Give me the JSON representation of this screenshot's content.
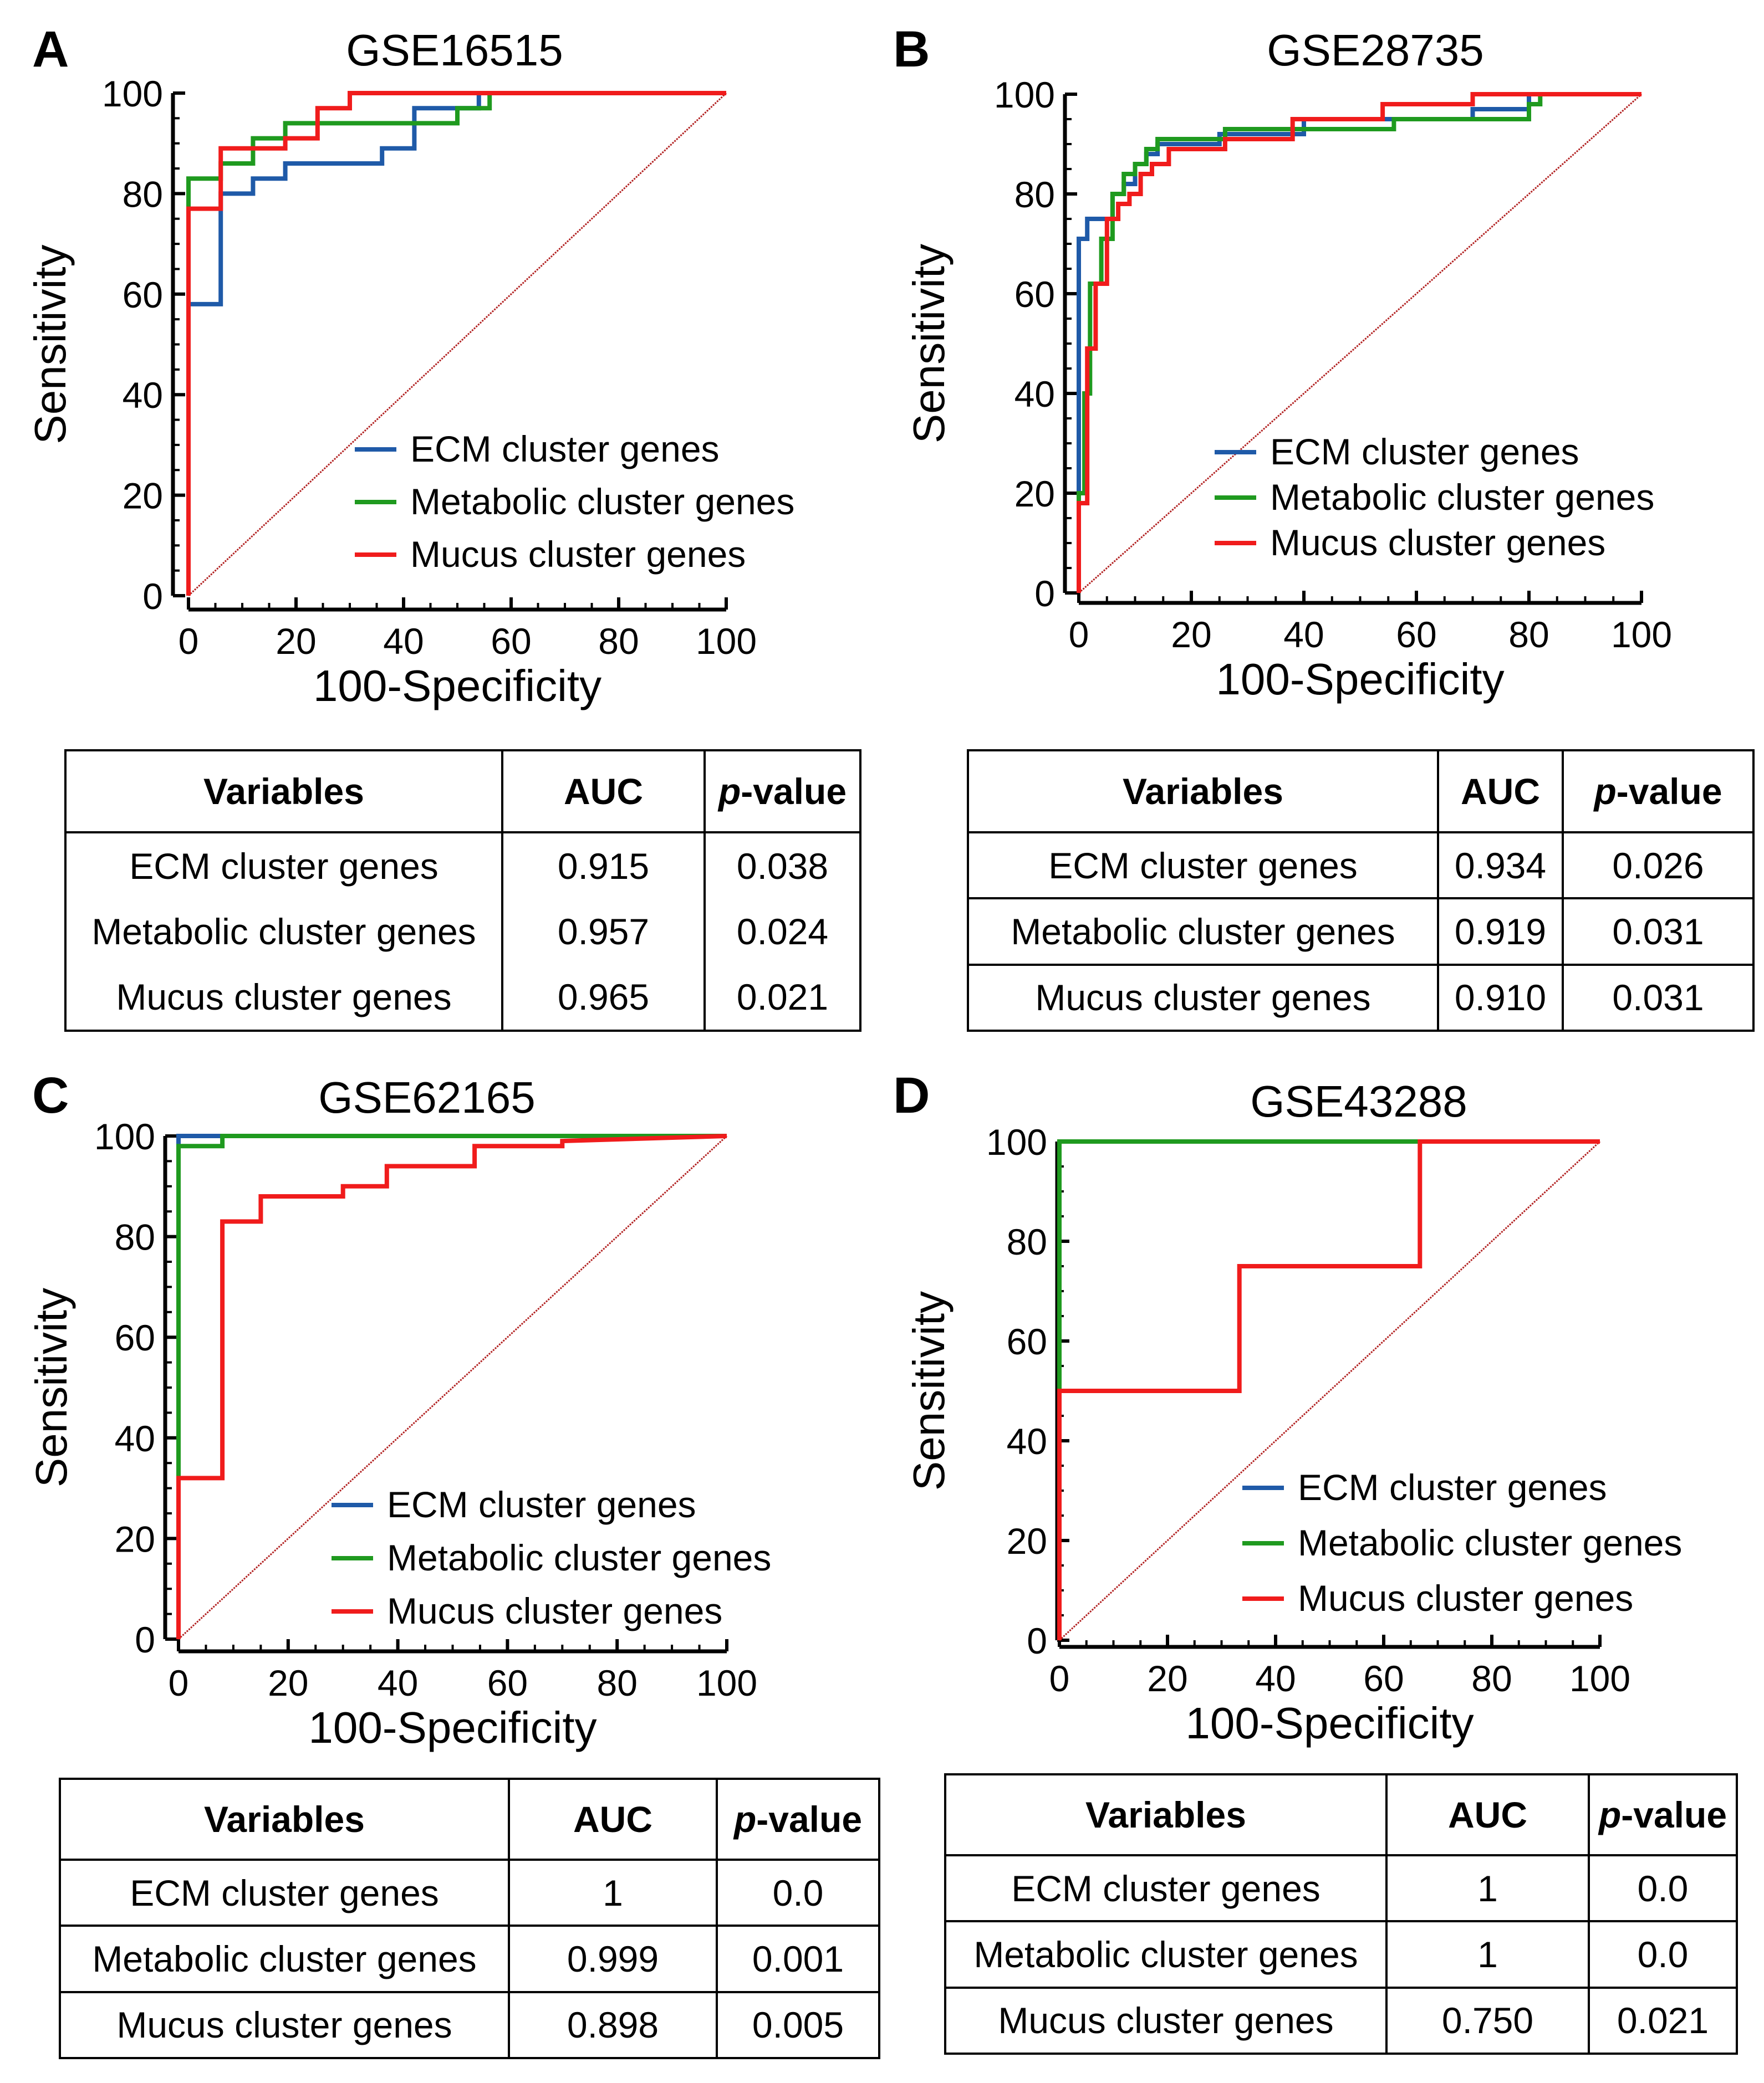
{
  "legend_labels": [
    "ECM cluster genes",
    "Metabolic cluster genes",
    "Mucus cluster genes"
  ],
  "colors": {
    "ecm": "#1f5aa8",
    "metabolic": "#1f9a1f",
    "mucus": "#f01c1c",
    "diagonal": "#b22222"
  },
  "table_headers": {
    "variables": "Variables",
    "auc": "AUC",
    "p_prefix": "p",
    "p_suffix": "-value"
  },
  "panels": [
    {
      "letter": "A",
      "title": "GSE16515",
      "rows": [
        {
          "variable": "ECM cluster genes",
          "auc": "0.915",
          "p": "0.038"
        },
        {
          "variable": "Metabolic cluster genes",
          "auc": "0.957",
          "p": "0.024"
        },
        {
          "variable": "Mucus cluster genes",
          "auc": "0.965",
          "p": "0.021"
        }
      ]
    },
    {
      "letter": "B",
      "title": "GSE28735",
      "rows": [
        {
          "variable": "ECM cluster genes",
          "auc": "0.934",
          "p": "0.026"
        },
        {
          "variable": "Metabolic cluster genes",
          "auc": "0.919",
          "p": "0.031"
        },
        {
          "variable": "Mucus cluster genes",
          "auc": "0.910",
          "p": "0.031"
        }
      ]
    },
    {
      "letter": "C",
      "title": "GSE62165",
      "rows": [
        {
          "variable": "ECM cluster genes",
          "auc": "1",
          "p": "0.0"
        },
        {
          "variable": "Metabolic cluster genes",
          "auc": "0.999",
          "p": "0.001"
        },
        {
          "variable": "Mucus cluster genes",
          "auc": "0.898",
          "p": "0.005"
        }
      ]
    },
    {
      "letter": "D",
      "title": "GSE43288",
      "rows": [
        {
          "variable": "ECM cluster genes",
          "auc": "1",
          "p": "0.0"
        },
        {
          "variable": "Metabolic cluster genes",
          "auc": "1",
          "p": "0.0"
        },
        {
          "variable": "Mucus cluster genes",
          "auc": "0.750",
          "p": "0.021"
        }
      ]
    }
  ],
  "chart_data": [
    {
      "type": "line",
      "title": "GSE16515",
      "xlabel": "100-Specificity",
      "ylabel": "Sensitivity",
      "xlim": [
        0,
        100
      ],
      "ylim": [
        0,
        100
      ],
      "xticks": [
        0,
        20,
        40,
        60,
        80,
        100
      ],
      "yticks": [
        0,
        20,
        40,
        60,
        80,
        100
      ],
      "legend": "lower-right",
      "series": [
        {
          "name": "ECM cluster genes",
          "x": [
            0,
            0,
            6,
            6,
            12,
            12,
            18,
            18,
            36,
            36,
            42,
            42,
            48,
            48,
            54,
            54,
            100
          ],
          "y": [
            0,
            58,
            58,
            80,
            80,
            83,
            83,
            86,
            86,
            89,
            89,
            97,
            97,
            97,
            97,
            100,
            100
          ]
        },
        {
          "name": "Metabolic cluster genes",
          "x": [
            0,
            0,
            6,
            6,
            12,
            12,
            18,
            18,
            50,
            50,
            56,
            56,
            100
          ],
          "y": [
            0,
            83,
            83,
            86,
            86,
            91,
            91,
            94,
            94,
            97,
            97,
            100,
            100
          ]
        },
        {
          "name": "Mucus cluster genes",
          "x": [
            0,
            0,
            6,
            6,
            18,
            18,
            24,
            24,
            30,
            30,
            100
          ],
          "y": [
            0,
            77,
            77,
            89,
            89,
            91,
            91,
            97,
            97,
            100,
            100
          ]
        },
        {
          "name": "reference",
          "x": [
            0,
            100
          ],
          "y": [
            0,
            100
          ]
        }
      ]
    },
    {
      "type": "line",
      "title": "GSE28735",
      "xlabel": "100-Specificity",
      "ylabel": "Sensitivity",
      "xlim": [
        0,
        100
      ],
      "ylim": [
        0,
        100
      ],
      "xticks": [
        0,
        20,
        40,
        60,
        80,
        100
      ],
      "yticks": [
        0,
        20,
        40,
        60,
        80,
        100
      ],
      "legend": "lower-right",
      "series": [
        {
          "name": "ECM cluster genes",
          "x": [
            0,
            0,
            1.5,
            1.5,
            6,
            6,
            8,
            8,
            10,
            10,
            12,
            12,
            14,
            14,
            25,
            25,
            40,
            40,
            70,
            70,
            80,
            80,
            100
          ],
          "y": [
            0,
            71,
            71,
            75,
            75,
            80,
            80,
            82,
            82,
            86,
            86,
            88,
            88,
            90,
            90,
            92,
            92,
            95,
            95,
            97,
            97,
            100,
            100
          ]
        },
        {
          "name": "Metabolic cluster genes",
          "x": [
            0,
            0,
            1,
            1,
            2,
            2,
            4,
            4,
            6,
            6,
            8,
            8,
            10,
            10,
            12,
            12,
            14,
            14,
            26,
            26,
            56,
            56,
            80,
            80,
            82,
            82,
            100
          ],
          "y": [
            0,
            20,
            20,
            40,
            40,
            62,
            62,
            71,
            71,
            80,
            80,
            84,
            84,
            86,
            86,
            89,
            89,
            91,
            91,
            93,
            93,
            95,
            95,
            98,
            98,
            100,
            100
          ]
        },
        {
          "name": "Mucus cluster genes",
          "x": [
            0,
            0,
            1.5,
            1.5,
            3,
            3,
            5,
            5,
            7,
            7,
            9,
            9,
            11,
            11,
            13,
            13,
            16,
            16,
            26,
            26,
            38,
            38,
            54,
            54,
            70,
            70,
            100
          ],
          "y": [
            0,
            18,
            18,
            49,
            49,
            62,
            62,
            75,
            75,
            78,
            78,
            80,
            80,
            84,
            84,
            86,
            86,
            89,
            89,
            91,
            91,
            95,
            95,
            98,
            98,
            100,
            100
          ]
        },
        {
          "name": "reference",
          "x": [
            0,
            100
          ],
          "y": [
            0,
            100
          ]
        }
      ]
    },
    {
      "type": "line",
      "title": "GSE62165",
      "xlabel": "100-Specificity",
      "ylabel": "Sensitivity",
      "xlim": [
        0,
        100
      ],
      "ylim": [
        0,
        100
      ],
      "xticks": [
        0,
        20,
        40,
        60,
        80,
        100
      ],
      "yticks": [
        0,
        20,
        40,
        60,
        80,
        100
      ],
      "legend": "lower-right",
      "series": [
        {
          "name": "ECM cluster genes",
          "x": [
            0,
            0,
            100
          ],
          "y": [
            0,
            100,
            100
          ]
        },
        {
          "name": "Metabolic cluster genes",
          "x": [
            0,
            0,
            8,
            8,
            100
          ],
          "y": [
            0,
            98,
            98,
            100,
            100
          ]
        },
        {
          "name": "Mucus cluster genes",
          "x": [
            0,
            0,
            8,
            8,
            15,
            15,
            30,
            30,
            38,
            38,
            54,
            54,
            70,
            70,
            100
          ],
          "y": [
            0,
            32,
            32,
            83,
            83,
            88,
            88,
            90,
            90,
            94,
            94,
            98,
            98,
            99,
            100
          ]
        },
        {
          "name": "reference",
          "x": [
            0,
            100
          ],
          "y": [
            0,
            100
          ]
        }
      ]
    },
    {
      "type": "line",
      "title": "GSE43288",
      "xlabel": "100-Specificity",
      "ylabel": "Sensitivity",
      "xlim": [
        0,
        100
      ],
      "ylim": [
        0,
        100
      ],
      "xticks": [
        0,
        20,
        40,
        60,
        80,
        100
      ],
      "yticks": [
        0,
        20,
        40,
        60,
        80,
        100
      ],
      "legend": "lower-right",
      "series": [
        {
          "name": "ECM cluster genes",
          "x": [
            0,
            0,
            100
          ],
          "y": [
            0,
            100,
            100
          ]
        },
        {
          "name": "Metabolic cluster genes",
          "x": [
            0,
            0,
            100
          ],
          "y": [
            0,
            100,
            100
          ]
        },
        {
          "name": "Mucus cluster genes",
          "x": [
            0,
            0,
            33.3,
            33.3,
            66.7,
            66.7,
            100
          ],
          "y": [
            0,
            50,
            50,
            75,
            75,
            100,
            100
          ]
        },
        {
          "name": "reference",
          "x": [
            0,
            100
          ],
          "y": [
            0,
            100
          ]
        }
      ]
    }
  ]
}
